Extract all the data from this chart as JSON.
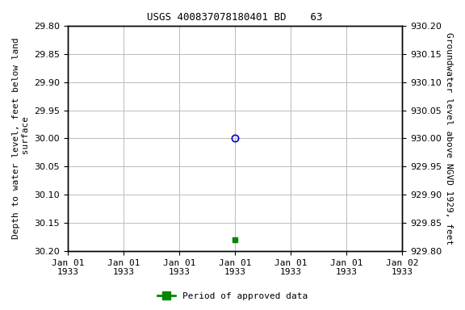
{
  "title": "USGS 400837078180401 BD    63",
  "ylabel_left": "Depth to water level, feet below land\n surface",
  "ylabel_right": "Groundwater level above NGVD 1929, feet",
  "ylim_left": [
    30.2,
    29.8
  ],
  "ylim_right": [
    929.8,
    930.2
  ],
  "yticks_left": [
    29.8,
    29.85,
    29.9,
    29.95,
    30.0,
    30.05,
    30.1,
    30.15,
    30.2
  ],
  "yticks_right": [
    930.2,
    930.15,
    930.1,
    930.05,
    930.0,
    929.95,
    929.9,
    929.85,
    929.8
  ],
  "xtick_labels": [
    "Jan 01\n1933",
    "Jan 01\n1933",
    "Jan 01\n1933",
    "Jan 01\n1933",
    "Jan 01\n1933",
    "Jan 01\n1933",
    "Jan 02\n1933"
  ],
  "xlim": [
    0,
    6
  ],
  "xtick_positions": [
    0,
    1,
    2,
    3,
    4,
    5,
    6
  ],
  "data_point_x": 3,
  "data_point_y": 30.0,
  "data_point_color": "#0000cc",
  "approved_point_x": 3,
  "approved_point_y": 30.18,
  "approved_point_color": "#008800",
  "legend_label": "Period of approved data",
  "background_color": "#ffffff",
  "grid_color": "#bbbbbb",
  "title_fontsize": 9,
  "axis_label_fontsize": 8,
  "tick_fontsize": 8
}
